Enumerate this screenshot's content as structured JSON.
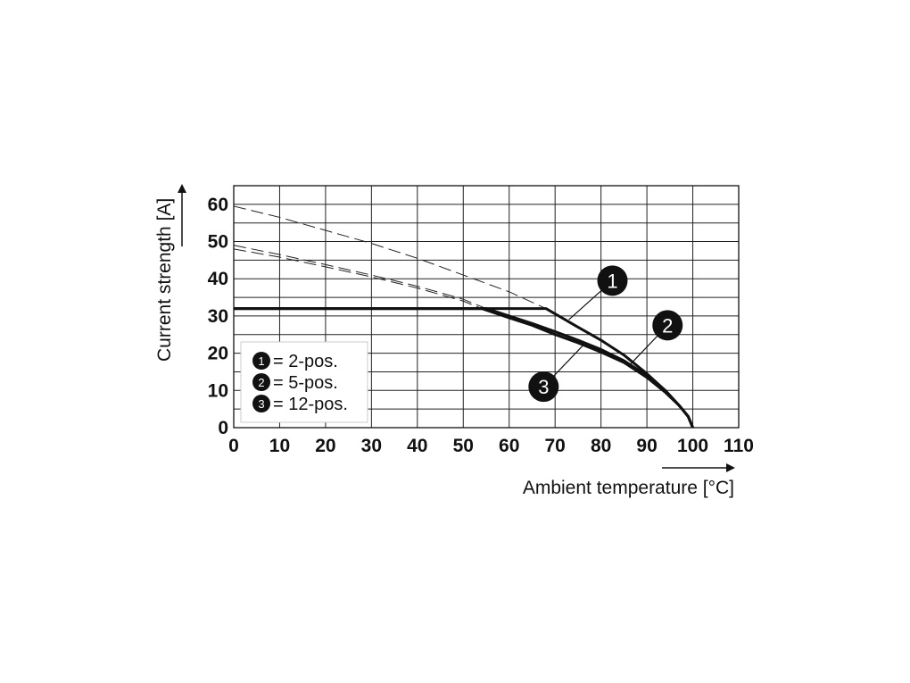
{
  "chart_data": {
    "type": "line",
    "title": "",
    "xlabel": "Ambient temperature [°C]",
    "ylabel": "Current strength [A]",
    "xlim": [
      0,
      110
    ],
    "ylim": [
      0,
      65
    ],
    "x_ticks": [
      "0",
      "10",
      "20",
      "30",
      "40",
      "50",
      "60",
      "70",
      "80",
      "90",
      "100",
      "110"
    ],
    "y_ticks": [
      "0",
      "10",
      "20",
      "30",
      "40",
      "50",
      "60"
    ],
    "grid": true,
    "legend_position": "bottom-left",
    "legend": [
      {
        "marker": "1",
        "label": "= 2-pos."
      },
      {
        "marker": "2",
        "label": "= 5-pos."
      },
      {
        "marker": "3",
        "label": "= 12-pos."
      }
    ],
    "series": [
      {
        "marker": "1",
        "style": "solid",
        "x": [
          0,
          68,
          75,
          80,
          85,
          90,
          94,
          97,
          99,
          100
        ],
        "y": [
          32,
          32,
          27,
          23.5,
          19.5,
          14.5,
          10,
          6,
          3,
          0
        ]
      },
      {
        "marker": "2",
        "style": "solid",
        "x": [
          0,
          55,
          60,
          65,
          70,
          75,
          80,
          85,
          90,
          94,
          97,
          99,
          100
        ],
        "y": [
          32,
          32,
          30,
          28,
          25.8,
          23.5,
          21,
          18,
          14,
          10,
          6,
          3,
          0
        ]
      },
      {
        "marker": "3",
        "style": "solid",
        "x": [
          0,
          54,
          60,
          65,
          70,
          75,
          80,
          85,
          90,
          94,
          97,
          99,
          100
        ],
        "y": [
          32,
          32,
          29.5,
          27.5,
          25,
          22.8,
          20.3,
          17.5,
          13.5,
          9.5,
          6,
          3,
          0
        ]
      },
      {
        "marker": "1",
        "style": "dashed",
        "x": [
          0,
          10,
          20,
          30,
          40,
          50,
          60,
          68
        ],
        "y": [
          59.5,
          56.5,
          53,
          49.5,
          45.5,
          41,
          36.5,
          32
        ]
      },
      {
        "marker": "2",
        "style": "dashed",
        "x": [
          0,
          10,
          20,
          30,
          40,
          50,
          55
        ],
        "y": [
          49,
          46.5,
          43.8,
          41,
          38,
          34.5,
          32
        ]
      },
      {
        "marker": "3",
        "style": "dashed",
        "x": [
          0,
          10,
          20,
          30,
          40,
          50,
          54
        ],
        "y": [
          48,
          45.8,
          43.2,
          40.5,
          37.5,
          34,
          32
        ]
      }
    ],
    "callouts": [
      {
        "marker": "1",
        "label_x": 82.5,
        "label_y": 39.5,
        "target_x": 73,
        "target_y": 29
      },
      {
        "marker": "2",
        "label_x": 94.5,
        "label_y": 27.5,
        "target_x": 86,
        "target_y": 16.5
      },
      {
        "marker": "3",
        "label_x": 67.5,
        "label_y": 11,
        "target_x": 76,
        "target_y": 22
      }
    ]
  }
}
